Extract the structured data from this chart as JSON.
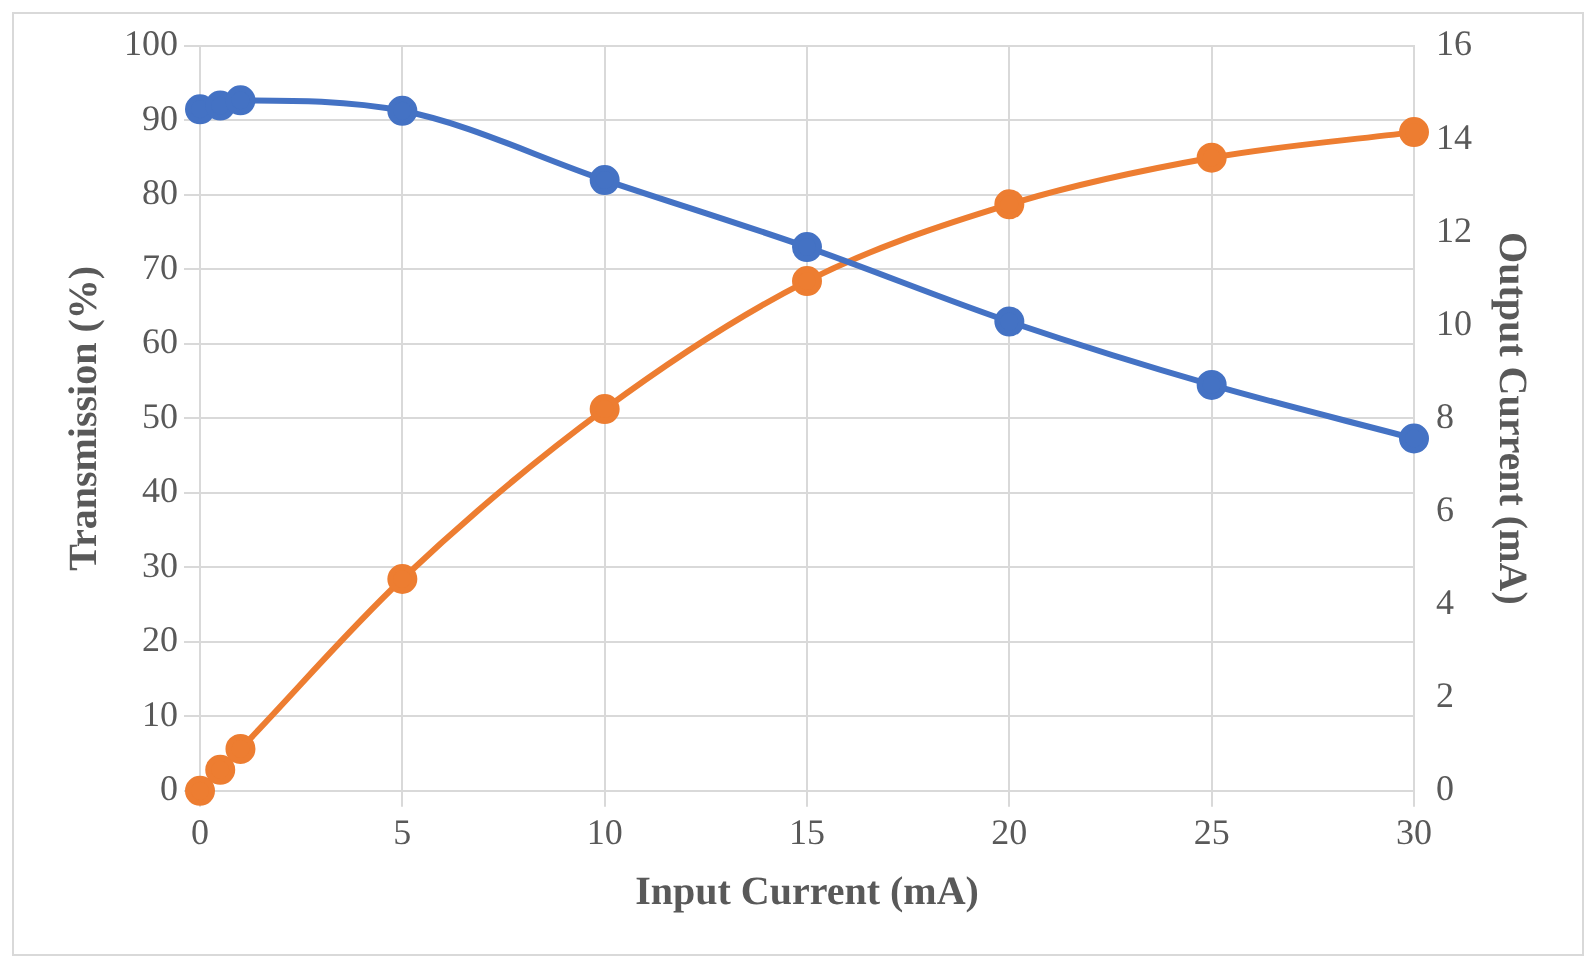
{
  "chart_data": {
    "type": "line",
    "xlabel": "Input Current (mA)",
    "ylabel": "Transmission (%)",
    "y2label": "Output Current (mA)",
    "x": [
      0,
      0.5,
      1,
      5,
      10,
      15,
      20,
      25,
      30
    ],
    "series": [
      {
        "color": "#4472c4",
        "values": [
          91.5,
          92,
          92.7,
          91.3,
          82,
          73,
          63,
          54.5,
          47.3
        ]
      },
      {
        "color": "#ed7d31",
        "axis": "y2",
        "values": [
          0,
          0.45,
          0.9,
          4.55,
          8.2,
          10.95,
          12.6,
          13.6,
          14.15
        ]
      }
    ],
    "xlim": [
      0,
      30
    ],
    "xticks": [
      0,
      5,
      10,
      15,
      20,
      25,
      30
    ],
    "ylim": [
      0,
      100
    ],
    "yticks": [
      0,
      10,
      20,
      30,
      40,
      50,
      60,
      70,
      80,
      90,
      100
    ],
    "y2lim": [
      0,
      16
    ],
    "y2ticks": [
      0,
      2,
      4,
      6,
      8,
      10,
      12,
      14,
      16
    ],
    "grid": true,
    "legend": false,
    "marker": "circle",
    "line_style": "solid"
  }
}
